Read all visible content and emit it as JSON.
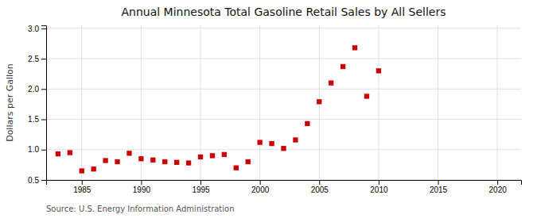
{
  "chart_data": {
    "type": "scatter",
    "title": "Annual Minnesota Total Gasoline Retail Sales by All Sellers",
    "ylabel": "Dollars per Gallon",
    "annotations": [
      "Source: U.S. Energy Information Administration"
    ],
    "x": [
      1983,
      1984,
      1985,
      1986,
      1987,
      1988,
      1989,
      1990,
      1991,
      1992,
      1993,
      1994,
      1995,
      1996,
      1997,
      1998,
      1999,
      2000,
      2001,
      2002,
      2003,
      2004,
      2005,
      2006,
      2007,
      2008,
      2009,
      2010
    ],
    "values": [
      0.93,
      0.95,
      0.65,
      0.68,
      0.82,
      0.8,
      0.94,
      0.85,
      0.83,
      0.8,
      0.79,
      0.78,
      0.88,
      0.9,
      0.92,
      0.7,
      0.8,
      1.12,
      1.1,
      1.02,
      1.16,
      1.43,
      1.79,
      2.1,
      2.37,
      2.68,
      1.88,
      2.3
    ],
    "color": "#cc0000",
    "marker": "square",
    "xlim": [
      1982,
      2022
    ],
    "ylim": [
      0.5,
      3.05
    ],
    "xticks": [
      1985,
      1990,
      1995,
      2000,
      2005,
      2010,
      2015,
      2020
    ],
    "yticks": [
      0.5,
      {
        "value": 1.0,
        "label": "1.0"
      },
      1.5,
      {
        "value": 2.0,
        "label": "2.0"
      },
      2.5,
      {
        "value": 3.0,
        "label": "3.0"
      }
    ],
    "grid": true
  }
}
